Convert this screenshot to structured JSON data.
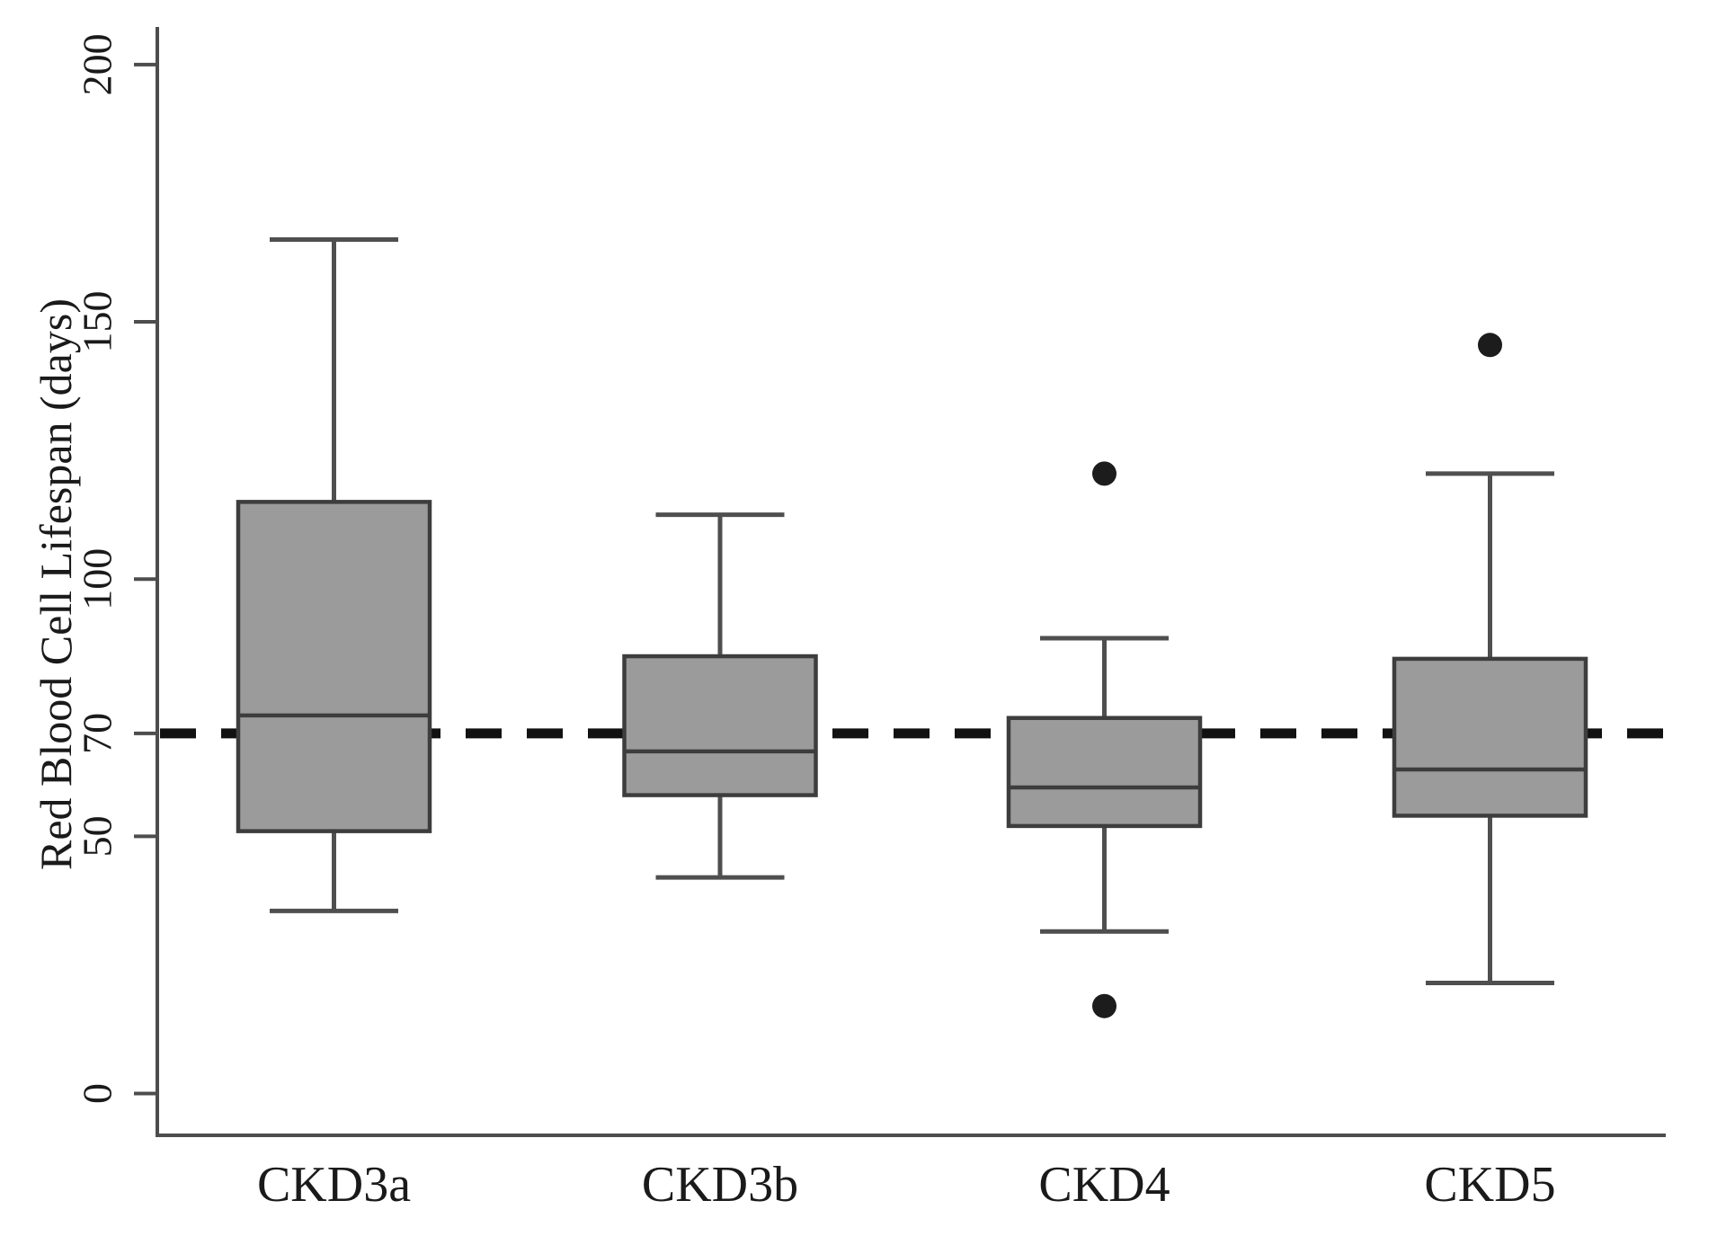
{
  "page": {
    "background": "#ffffff"
  },
  "chart_data": {
    "type": "box",
    "title": "",
    "xlabel": "",
    "ylabel": "Red Blood Cell Lifespan (days)",
    "categories": [
      "CKD3a",
      "CKD3b",
      "CKD4",
      "CKD5"
    ],
    "series": [
      {
        "name": "CKD3a",
        "whisker_low": 35.5,
        "q1": 51,
        "median": 73.5,
        "q3": 115,
        "whisker_high": 166,
        "outliers": []
      },
      {
        "name": "CKD3b",
        "whisker_low": 42,
        "q1": 58,
        "median": 66.5,
        "q3": 85,
        "whisker_high": 112.5,
        "outliers": []
      },
      {
        "name": "CKD4",
        "whisker_low": 31.5,
        "q1": 52,
        "median": 59.5,
        "q3": 73,
        "whisker_high": 88.5,
        "outliers": [
          17,
          120.5
        ]
      },
      {
        "name": "CKD5",
        "whisker_low": 21.5,
        "q1": 54,
        "median": 63,
        "q3": 84.5,
        "whisker_high": 120.5,
        "outliers": [
          145.5
        ]
      }
    ],
    "yticks": [
      {
        "value": 0,
        "label": "0"
      },
      {
        "value": 50,
        "label": "50"
      },
      {
        "value": 70,
        "label": "70"
      },
      {
        "value": 100,
        "label": "100"
      },
      {
        "value": 150,
        "label": "150"
      },
      {
        "value": 200,
        "label": "200"
      }
    ],
    "ylim": [
      0,
      207
    ],
    "reference_line": {
      "value": 70,
      "style": "dashed"
    },
    "grid": false,
    "legend": null,
    "colors": {
      "box_fill": "#9b9b9b",
      "box_border": "#3d3d3d",
      "median": "#3d3d3d",
      "whisker": "#4f4f4f",
      "outlier": "#1c1c1c",
      "reference": "#111111",
      "axis": "#4d4d4d",
      "text": "#1a1a1a",
      "background": "#ffffff"
    }
  }
}
